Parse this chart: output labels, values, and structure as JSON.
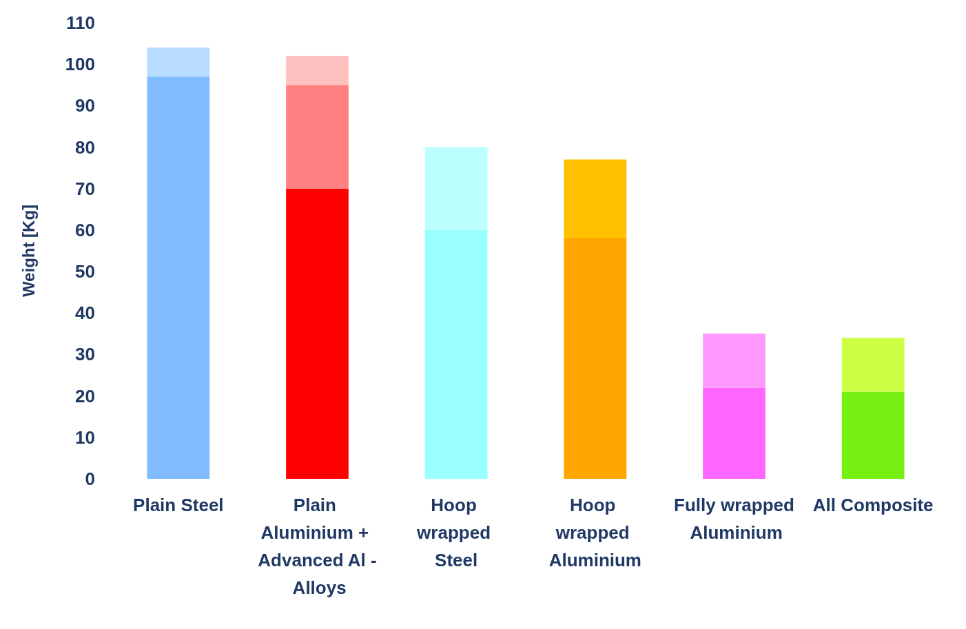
{
  "chart_data": {
    "type": "bar",
    "stacked": true,
    "ylabel": "Weight [Kg]",
    "categories": [
      "Plain Steel",
      "Plain Aluminium + Advanced Al - Alloys",
      "Hoop wrapped Steel",
      "Hoop wrapped Aluminium",
      "Fully wrapped Aluminium",
      "All Composite"
    ],
    "series": [
      {
        "colors": [
          "#80bbff",
          "#ff0000",
          "#99ffff",
          "#ffa500",
          "#ff66ff",
          "#77f011"
        ],
        "values": [
          97,
          70,
          60,
          58,
          22,
          21
        ]
      },
      {
        "colors": [
          "#b8dcff",
          "#ff8080",
          "#bbffff",
          "#ffc000",
          "#ff99ff",
          "#ccff44"
        ],
        "values": [
          7,
          25,
          20,
          19,
          13,
          13
        ]
      },
      {
        "colors": [
          null,
          "#ffc0c0",
          null,
          null,
          null,
          null
        ],
        "values": [
          null,
          7,
          null,
          null,
          null,
          null
        ]
      }
    ],
    "ylim": [
      0,
      110
    ],
    "yticks": [
      0,
      10,
      20,
      30,
      40,
      50,
      60,
      70,
      80,
      90,
      100,
      110
    ],
    "grid": false
  }
}
